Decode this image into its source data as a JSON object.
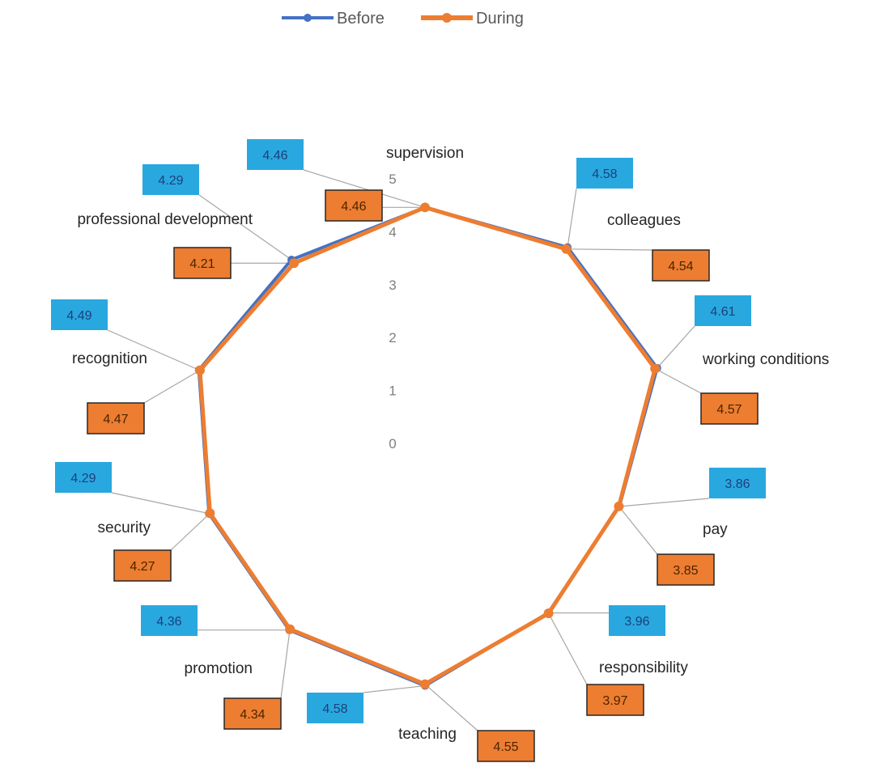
{
  "chart_data": {
    "type": "radar",
    "categories": [
      "supervision",
      "colleagues",
      "working conditions",
      "pay",
      "responsibility",
      "teaching",
      "promotion",
      "security",
      "recognition",
      "professional development"
    ],
    "series": [
      {
        "name": "Before",
        "color": "#4472c4",
        "values": [
          4.46,
          4.58,
          4.61,
          3.86,
          3.96,
          4.58,
          4.36,
          4.29,
          4.49,
          4.29
        ]
      },
      {
        "name": "During",
        "color": "#ed7d31",
        "values": [
          4.46,
          4.54,
          4.57,
          3.85,
          3.97,
          4.55,
          4.34,
          4.27,
          4.47,
          4.21
        ]
      }
    ],
    "axis": {
      "min": 0,
      "max": 5,
      "ticks": [
        0,
        1,
        2,
        3,
        4,
        5
      ]
    },
    "legend": "top-center",
    "data_labels": {
      "Before": [
        "4.46",
        "4.58",
        "4.61",
        "3.86",
        "3.96",
        "4.58",
        "4.36",
        "4.29",
        "4.49",
        "4.29"
      ],
      "During": [
        "4.46",
        "4.54",
        "4.57",
        "3.85",
        "3.97",
        "4.55",
        "4.34",
        "4.27",
        "4.47",
        "4.21"
      ]
    },
    "label_colors": {
      "Before": "#29a8e0",
      "During": "#ed7d31"
    }
  }
}
